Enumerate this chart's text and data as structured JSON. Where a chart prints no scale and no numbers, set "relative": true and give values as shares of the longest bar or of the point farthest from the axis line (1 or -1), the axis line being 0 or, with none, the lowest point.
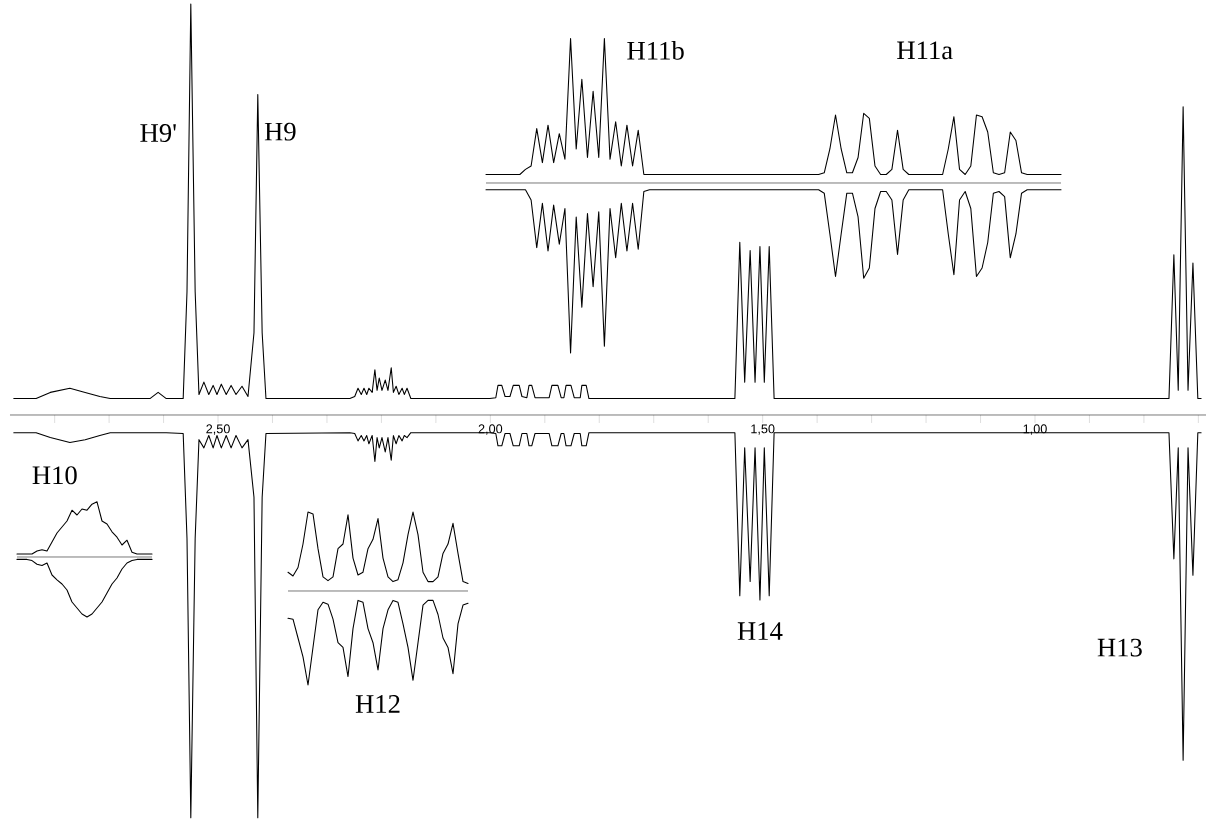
{
  "chart_data": [
    {
      "type": "line",
      "relative": true,
      "x": [
        2.875,
        2.834,
        2.808,
        2.772,
        2.744,
        2.717,
        2.698,
        2.625,
        2.61,
        2.595,
        2.564,
        2.557,
        2.55,
        2.542,
        2.535,
        2.526,
        2.517,
        2.509,
        2.502,
        2.494,
        2.485,
        2.476,
        2.467,
        2.456,
        2.445,
        2.434,
        2.427,
        2.419,
        2.412,
        2.258,
        2.249,
        2.243,
        2.237,
        2.232,
        2.227,
        2.223,
        2.217,
        2.212,
        2.208,
        2.204,
        2.199,
        2.193,
        2.188,
        2.182,
        2.178,
        2.173,
        2.168,
        2.162,
        2.158,
        2.153,
        2.146,
        2.001,
        1.99,
        1.986,
        1.979,
        1.973,
        1.964,
        1.958,
        1.947,
        1.942,
        1.933,
        1.929,
        1.924,
        1.918,
        1.892,
        1.887,
        1.876,
        1.87,
        1.865,
        1.861,
        1.852,
        1.846,
        1.835,
        1.832,
        1.824,
        1.819,
        1.551,
        1.542,
        1.533,
        1.523,
        1.514,
        1.505,
        1.497,
        1.488,
        1.479,
        0.754,
        0.745,
        0.737,
        0.728,
        0.719,
        0.71,
        0.701,
        0.695
      ],
      "series": [
        {
          "color": "#000000",
          "values": [
            0.04,
            0.04,
            0.055,
            0.065,
            0.055,
            0.045,
            0.04,
            0.04,
            0.055,
            0.04,
            0.04,
            0.3,
            1.0,
            0.3,
            0.05,
            0.08,
            0.05,
            0.072,
            0.05,
            0.075,
            0.05,
            0.072,
            0.05,
            0.07,
            0.045,
            0.2,
            0.78,
            0.2,
            0.04,
            0.04,
            0.045,
            0.065,
            0.05,
            0.065,
            0.05,
            0.065,
            0.055,
            0.11,
            0.06,
            0.09,
            0.06,
            0.085,
            0.06,
            0.115,
            0.055,
            0.07,
            0.05,
            0.065,
            0.05,
            0.065,
            0.04,
            0.04,
            0.042,
            0.072,
            0.072,
            0.045,
            0.045,
            0.072,
            0.072,
            0.045,
            0.042,
            0.072,
            0.072,
            0.042,
            0.042,
            0.072,
            0.072,
            0.042,
            0.042,
            0.072,
            0.072,
            0.042,
            0.042,
            0.072,
            0.072,
            0.04,
            0.04,
            0.42,
            0.08,
            0.4,
            0.08,
            0.41,
            0.08,
            0.41,
            0.04,
            0.04,
            0.39,
            0.06,
            0.75,
            0.06,
            0.37,
            0.04,
            0.04
          ]
        },
        {
          "color": "#000000",
          "values": [
            -0.043,
            -0.043,
            -0.055,
            -0.067,
            -0.06,
            -0.05,
            -0.043,
            -0.043,
            -0.043,
            -0.043,
            -0.045,
            -0.3,
            -0.98,
            -0.3,
            -0.06,
            -0.08,
            -0.05,
            -0.08,
            -0.05,
            -0.08,
            -0.05,
            -0.08,
            -0.05,
            -0.08,
            -0.06,
            -0.2,
            -0.98,
            -0.2,
            -0.045,
            -0.043,
            -0.045,
            -0.063,
            -0.05,
            -0.063,
            -0.05,
            -0.07,
            -0.05,
            -0.113,
            -0.055,
            -0.08,
            -0.055,
            -0.09,
            -0.055,
            -0.11,
            -0.05,
            -0.07,
            -0.05,
            -0.063,
            -0.05,
            -0.055,
            -0.043,
            -0.043,
            -0.045,
            -0.075,
            -0.075,
            -0.045,
            -0.045,
            -0.075,
            -0.075,
            -0.045,
            -0.045,
            -0.075,
            -0.075,
            -0.045,
            -0.045,
            -0.075,
            -0.075,
            -0.045,
            -0.045,
            -0.075,
            -0.075,
            -0.045,
            -0.045,
            -0.075,
            -0.075,
            -0.043,
            -0.043,
            -0.44,
            -0.08,
            -0.405,
            -0.08,
            -0.45,
            -0.08,
            -0.44,
            -0.043,
            -0.043,
            -0.35,
            -0.08,
            -0.84,
            -0.08,
            -0.39,
            -0.043,
            -0.043
          ]
        }
      ],
      "xlim": [
        2.882,
        0.686
      ],
      "xticks": [
        {
          "value": 2.8,
          "label": null
        },
        {
          "value": 2.7,
          "label": null
        },
        {
          "value": 2.6,
          "label": null
        },
        {
          "value": 2.5,
          "label": "2,50"
        },
        {
          "value": 2.4,
          "label": null
        },
        {
          "value": 2.3,
          "label": null
        },
        {
          "value": 2.2,
          "label": null
        },
        {
          "value": 2.1,
          "label": null
        },
        {
          "value": 2.0,
          "label": "2,00"
        },
        {
          "value": 1.9,
          "label": null
        },
        {
          "value": 1.8,
          "label": null
        },
        {
          "value": 1.7,
          "label": null
        },
        {
          "value": 1.6,
          "label": null
        },
        {
          "value": 1.5,
          "label": "1,50"
        },
        {
          "value": 1.4,
          "label": null
        },
        {
          "value": 1.3,
          "label": null
        },
        {
          "value": 1.2,
          "label": null
        },
        {
          "value": 1.1,
          "label": null
        },
        {
          "value": 1.0,
          "label": "1,00"
        },
        {
          "value": 0.9,
          "label": null
        },
        {
          "value": 0.8,
          "label": null
        },
        {
          "value": 0.7,
          "label": null
        }
      ],
      "annotations": [
        "H9'",
        {
          "text": "H9",
          "x": 2.427,
          "y": 0.78
        },
        {
          "text": "H14",
          "x": 1.505,
          "y": -0.45
        },
        "H13"
      ]
    },
    {
      "type": "line",
      "relative": true,
      "categories": [
        null,
        null,
        null,
        null,
        null,
        null,
        null,
        null,
        null,
        null,
        null,
        null,
        null,
        null,
        null,
        null,
        null,
        null,
        null,
        null,
        null,
        null,
        null,
        null,
        null,
        null,
        null,
        null,
        null,
        null,
        null,
        null,
        null,
        null,
        null,
        null,
        null,
        null,
        null,
        null,
        null,
        null,
        null,
        null,
        null,
        null,
        null,
        null,
        null,
        null,
        null,
        null,
        null,
        null,
        null,
        null,
        null,
        null,
        null,
        null,
        null,
        null,
        null,
        null,
        null,
        null,
        null,
        null,
        null,
        null,
        null,
        null,
        null,
        null,
        null,
        null,
        null,
        null,
        null,
        null,
        null,
        null,
        null,
        null,
        null,
        null,
        null,
        null,
        null,
        null,
        null,
        null,
        null,
        null,
        null,
        null,
        null,
        null,
        null,
        null,
        null,
        null,
        null
      ],
      "series": [
        {
          "color": "#000000",
          "values": [
            0.05,
            0.05,
            0.05,
            0.05,
            0.05,
            0.05,
            0.05,
            0.08,
            0.1,
            0.32,
            0.12,
            0.34,
            0.12,
            0.29,
            0.14,
            0.85,
            0.2,
            0.61,
            0.15,
            0.54,
            0.15,
            0.85,
            0.14,
            0.36,
            0.1,
            0.34,
            0.1,
            0.31,
            0.05,
            0.05,
            0.05,
            0.05,
            0.05,
            0.05,
            0.05,
            0.05,
            0.05,
            0.05,
            0.05,
            0.05,
            0.05,
            0.05,
            0.05,
            0.05,
            0.05,
            0.05,
            0.05,
            0.05,
            0.05,
            0.05,
            0.05,
            0.05,
            0.05,
            0.05,
            0.05,
            0.05,
            0.05,
            0.05,
            0.05,
            0.05,
            0.06,
            0.2,
            0.4,
            0.2,
            0.06,
            0.06,
            0.15,
            0.41,
            0.38,
            0.1,
            0.05,
            0.05,
            0.08,
            0.31,
            0.08,
            0.05,
            0.05,
            0.05,
            0.05,
            0.05,
            0.05,
            0.05,
            0.2,
            0.39,
            0.08,
            0.05,
            0.1,
            0.4,
            0.39,
            0.3,
            0.06,
            0.05,
            0.06,
            0.3,
            0.25,
            0.06,
            0.05,
            0.05,
            0.05,
            0.05,
            0.05,
            0.05,
            0.05
          ]
        },
        {
          "color": "#000000",
          "values": [
            -0.04,
            -0.04,
            -0.04,
            -0.04,
            -0.04,
            -0.04,
            -0.04,
            -0.04,
            -0.1,
            -0.38,
            -0.12,
            -0.4,
            -0.13,
            -0.36,
            -0.15,
            -1.0,
            -0.2,
            -0.73,
            -0.18,
            -0.61,
            -0.17,
            -0.96,
            -0.15,
            -0.44,
            -0.12,
            -0.4,
            -0.12,
            -0.39,
            -0.05,
            -0.04,
            -0.04,
            -0.04,
            -0.04,
            -0.04,
            -0.04,
            -0.04,
            -0.04,
            -0.04,
            -0.04,
            -0.04,
            -0.04,
            -0.04,
            -0.04,
            -0.04,
            -0.04,
            -0.04,
            -0.04,
            -0.04,
            -0.04,
            -0.04,
            -0.04,
            -0.04,
            -0.04,
            -0.04,
            -0.04,
            -0.04,
            -0.04,
            -0.04,
            -0.04,
            -0.04,
            -0.06,
            -0.3,
            -0.55,
            -0.3,
            -0.06,
            -0.06,
            -0.2,
            -0.56,
            -0.5,
            -0.15,
            -0.05,
            -0.05,
            -0.1,
            -0.42,
            -0.1,
            -0.04,
            -0.04,
            -0.04,
            -0.04,
            -0.04,
            -0.04,
            -0.04,
            -0.3,
            -0.54,
            -0.1,
            -0.05,
            -0.15,
            -0.55,
            -0.5,
            -0.35,
            -0.06,
            -0.05,
            -0.08,
            -0.44,
            -0.3,
            -0.06,
            -0.04,
            -0.04,
            -0.04,
            -0.04,
            -0.04,
            -0.04,
            -0.04
          ]
        }
      ],
      "annotations": [
        "H11b",
        "H11a"
      ]
    },
    {
      "type": "line",
      "relative": true,
      "xlabel": "H12",
      "categories": [
        null,
        null,
        null,
        null,
        null,
        null,
        null,
        null,
        null,
        null,
        null,
        null,
        null,
        null,
        null,
        null,
        null,
        null,
        null,
        null,
        null,
        null,
        null,
        null,
        null,
        null,
        null,
        null,
        null,
        null,
        null,
        null,
        null,
        null,
        null,
        null,
        null
      ],
      "series": [
        {
          "color": "#000000",
          "values": [
            0.2,
            0.16,
            0.25,
            0.5,
            0.84,
            0.82,
            0.45,
            0.15,
            0.11,
            0.15,
            0.45,
            0.5,
            0.81,
            0.35,
            0.17,
            0.2,
            0.45,
            0.55,
            0.77,
            0.35,
            0.15,
            0.1,
            0.12,
            0.3,
            0.6,
            0.84,
            0.6,
            0.2,
            0.1,
            0.1,
            0.15,
            0.4,
            0.5,
            0.72,
            0.4,
            0.1,
            0.08
          ]
        },
        {
          "color": "#000000",
          "values": [
            -0.29,
            -0.3,
            -0.5,
            -0.7,
            -1.0,
            -0.6,
            -0.2,
            -0.12,
            -0.14,
            -0.3,
            -0.55,
            -0.6,
            -0.91,
            -0.4,
            -0.1,
            -0.12,
            -0.4,
            -0.55,
            -0.84,
            -0.4,
            -0.2,
            -0.1,
            -0.12,
            -0.35,
            -0.6,
            -0.95,
            -0.55,
            -0.15,
            -0.1,
            -0.1,
            -0.25,
            -0.5,
            -0.6,
            -0.88,
            -0.35,
            -0.15,
            -0.13
          ]
        }
      ]
    },
    {
      "type": "line",
      "relative": true,
      "title": "H10",
      "categories": [
        null,
        null,
        null,
        null,
        null,
        null,
        null,
        null,
        null,
        null,
        null,
        null,
        null,
        null,
        null,
        null,
        null,
        null,
        null,
        null,
        null,
        null,
        null,
        null,
        null,
        null,
        null,
        null
      ],
      "series": [
        {
          "color": "#000000",
          "values": [
            0.05,
            0.05,
            0.05,
            0.05,
            0.1,
            0.12,
            0.1,
            0.25,
            0.4,
            0.5,
            0.6,
            0.78,
            0.7,
            0.8,
            0.78,
            0.88,
            0.92,
            0.6,
            0.55,
            0.42,
            0.33,
            0.2,
            0.28,
            0.08,
            0.05,
            0.05,
            0.05,
            0.05
          ]
        },
        {
          "color": "#000000",
          "values": [
            -0.04,
            -0.04,
            -0.04,
            -0.06,
            -0.12,
            -0.14,
            -0.1,
            -0.3,
            -0.38,
            -0.45,
            -0.55,
            -0.75,
            -0.85,
            -0.95,
            -1.0,
            -0.95,
            -0.85,
            -0.75,
            -0.6,
            -0.45,
            -0.35,
            -0.2,
            -0.1,
            -0.06,
            -0.04,
            -0.04,
            -0.04,
            -0.04
          ]
        }
      ]
    }
  ]
}
